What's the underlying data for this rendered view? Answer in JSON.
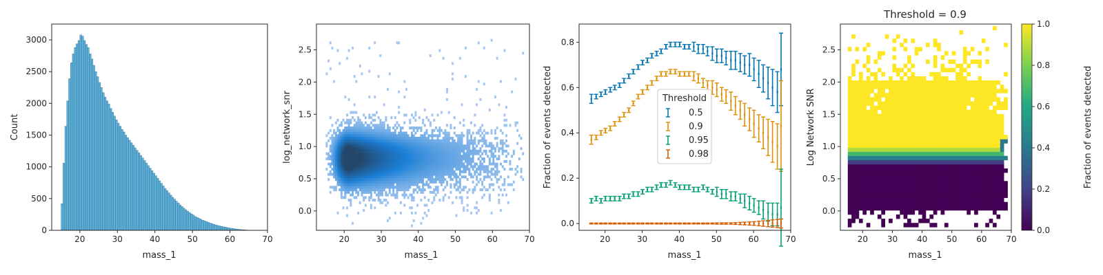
{
  "chart_data": [
    {
      "type": "bar",
      "subtype": "histogram",
      "xlabel": "mass_1",
      "ylabel": "Count",
      "xlim": [
        12.5,
        70
      ],
      "ylim": [
        0,
        3250
      ],
      "xticks": [
        "20",
        "30",
        "40",
        "50",
        "60",
        "70"
      ],
      "yticks": [
        "0",
        "500",
        "1000",
        "1500",
        "2000",
        "2500",
        "3000"
      ],
      "color": "#3a9ccd",
      "bin_start": 15,
      "bin_width": 0.5,
      "values": [
        420,
        1060,
        1640,
        2040,
        2390,
        2640,
        2780,
        2880,
        2940,
        2990,
        3080,
        3060,
        2990,
        2930,
        2880,
        2780,
        2700,
        2600,
        2500,
        2420,
        2330,
        2250,
        2170,
        2100,
        2040,
        1990,
        1920,
        1860,
        1800,
        1740,
        1690,
        1640,
        1590,
        1550,
        1500,
        1460,
        1420,
        1380,
        1340,
        1300,
        1260,
        1220,
        1180,
        1140,
        1100,
        1060,
        1020,
        980,
        940,
        900,
        860,
        820,
        780,
        740,
        700,
        660,
        625,
        590,
        555,
        520,
        490,
        460,
        430,
        400,
        375,
        350,
        325,
        300,
        280,
        260,
        240,
        220,
        205,
        190,
        175,
        160,
        148,
        136,
        125,
        114,
        104,
        94,
        85,
        77,
        70,
        63,
        56,
        50,
        44,
        38,
        33,
        28,
        24,
        20,
        16,
        13,
        10,
        8,
        6,
        4,
        3,
        2,
        1,
        1,
        0,
        0
      ]
    },
    {
      "type": "heatmap",
      "subtype": "2d-histogram",
      "xlabel": "mass_1",
      "ylabel": "log_network_snr",
      "xlim": [
        12.5,
        70
      ],
      "ylim": [
        -0.3,
        2.9
      ],
      "xticks": [
        "20",
        "30",
        "40",
        "50",
        "60",
        "70"
      ],
      "yticks": [
        "0.0",
        "0.5",
        "1.0",
        "1.5",
        "2.0",
        "2.5"
      ],
      "peak": {
        "mass_1": 21,
        "log_network_snr": 0.8
      },
      "colormap": [
        "#a8c8f0",
        "#1a7fd6",
        "#23476b"
      ]
    },
    {
      "type": "line",
      "subtype": "errorbar",
      "xlabel": "mass_1",
      "ylabel": "Fraction of events detected",
      "xlim": [
        13,
        70
      ],
      "ylim": [
        -0.03,
        0.88
      ],
      "xticks": [
        "20",
        "30",
        "40",
        "50",
        "60",
        "70"
      ],
      "yticks": [
        "0.0",
        "0.2",
        "0.4",
        "0.6",
        "0.8"
      ],
      "legend_title": "Threshold",
      "legend_position": "center",
      "x": [
        16.3,
        17.6,
        18.9,
        20.1,
        21.4,
        22.6,
        23.9,
        25.1,
        26.4,
        27.6,
        28.9,
        30.1,
        31.4,
        32.6,
        33.9,
        35.1,
        36.4,
        37.6,
        38.9,
        40.1,
        41.4,
        42.6,
        43.9,
        45.1,
        46.4,
        47.6,
        48.9,
        50.1,
        51.4,
        52.6,
        53.9,
        55.1,
        56.4,
        57.6,
        58.9,
        60.1,
        61.4,
        62.6,
        63.9,
        65.1,
        66.4,
        67.4
      ],
      "series": [
        {
          "name": "0.5",
          "color": "#0173b2",
          "values": [
            0.55,
            0.56,
            0.57,
            0.58,
            0.59,
            0.6,
            0.61,
            0.63,
            0.65,
            0.67,
            0.69,
            0.71,
            0.72,
            0.74,
            0.75,
            0.76,
            0.78,
            0.79,
            0.79,
            0.79,
            0.78,
            0.78,
            0.78,
            0.77,
            0.77,
            0.76,
            0.75,
            0.74,
            0.74,
            0.73,
            0.72,
            0.72,
            0.71,
            0.7,
            0.7,
            0.68,
            0.66,
            0.64,
            0.62,
            0.6,
            0.58,
            0.68
          ],
          "errors": [
            0.02,
            0.01,
            0.01,
            0.01,
            0.01,
            0.01,
            0.01,
            0.01,
            0.01,
            0.01,
            0.01,
            0.01,
            0.01,
            0.01,
            0.01,
            0.01,
            0.01,
            0.01,
            0.01,
            0.01,
            0.01,
            0.01,
            0.02,
            0.02,
            0.02,
            0.02,
            0.03,
            0.03,
            0.03,
            0.03,
            0.04,
            0.04,
            0.04,
            0.04,
            0.05,
            0.05,
            0.06,
            0.06,
            0.07,
            0.08,
            0.09,
            0.16
          ]
        },
        {
          "name": "0.9",
          "color": "#de8f05",
          "values": [
            0.37,
            0.38,
            0.4,
            0.41,
            0.42,
            0.44,
            0.46,
            0.48,
            0.5,
            0.53,
            0.56,
            0.58,
            0.6,
            0.62,
            0.64,
            0.66,
            0.66,
            0.67,
            0.67,
            0.66,
            0.66,
            0.66,
            0.65,
            0.64,
            0.62,
            0.61,
            0.6,
            0.59,
            0.57,
            0.56,
            0.54,
            0.52,
            0.5,
            0.48,
            0.46,
            0.44,
            0.42,
            0.4,
            0.38,
            0.36,
            0.34,
            0.43
          ],
          "errors": [
            0.02,
            0.01,
            0.01,
            0.01,
            0.01,
            0.01,
            0.01,
            0.01,
            0.01,
            0.01,
            0.01,
            0.01,
            0.01,
            0.01,
            0.01,
            0.01,
            0.01,
            0.01,
            0.01,
            0.01,
            0.01,
            0.01,
            0.02,
            0.02,
            0.02,
            0.02,
            0.03,
            0.03,
            0.03,
            0.03,
            0.04,
            0.04,
            0.04,
            0.05,
            0.05,
            0.06,
            0.06,
            0.07,
            0.08,
            0.09,
            0.1,
            0.2
          ]
        },
        {
          "name": "0.95",
          "color": "#029e73",
          "values": [
            0.1,
            0.11,
            0.1,
            0.11,
            0.11,
            0.11,
            0.11,
            0.12,
            0.12,
            0.13,
            0.13,
            0.14,
            0.15,
            0.15,
            0.16,
            0.17,
            0.17,
            0.18,
            0.17,
            0.16,
            0.16,
            0.16,
            0.15,
            0.15,
            0.16,
            0.15,
            0.14,
            0.14,
            0.13,
            0.13,
            0.12,
            0.12,
            0.11,
            0.1,
            0.09,
            0.08,
            0.07,
            0.06,
            0.05,
            0.04,
            0.04,
            0.07
          ],
          "errors": [
            0.01,
            0.01,
            0.01,
            0.01,
            0.01,
            0.01,
            0.01,
            0.01,
            0.01,
            0.01,
            0.01,
            0.01,
            0.01,
            0.01,
            0.01,
            0.01,
            0.01,
            0.01,
            0.01,
            0.01,
            0.01,
            0.01,
            0.01,
            0.01,
            0.01,
            0.01,
            0.01,
            0.02,
            0.02,
            0.02,
            0.02,
            0.02,
            0.02,
            0.03,
            0.03,
            0.03,
            0.03,
            0.04,
            0.04,
            0.05,
            0.05,
            0.17
          ]
        },
        {
          "name": "0.98",
          "color": "#d55e00",
          "values": [
            0,
            0,
            0,
            0,
            0,
            0,
            0,
            0,
            0,
            0,
            0,
            0,
            0,
            0,
            0,
            0,
            0,
            0,
            0,
            0,
            0,
            0,
            0,
            0,
            0,
            0,
            0,
            0,
            0,
            0,
            0,
            0,
            0,
            0,
            0,
            0,
            0,
            0,
            0,
            0,
            0,
            0
          ],
          "errors": [
            0.002,
            0.002,
            0.002,
            0.002,
            0.002,
            0.002,
            0.002,
            0.002,
            0.002,
            0.002,
            0.002,
            0.002,
            0.002,
            0.002,
            0.002,
            0.002,
            0.002,
            0.002,
            0.002,
            0.002,
            0.002,
            0.002,
            0.002,
            0.002,
            0.002,
            0.002,
            0.002,
            0.003,
            0.003,
            0.003,
            0.003,
            0.004,
            0.005,
            0.006,
            0.007,
            0.008,
            0.01,
            0.012,
            0.014,
            0.016,
            0.018,
            0.02
          ]
        }
      ]
    },
    {
      "type": "heatmap",
      "title": "Threshold = 0.9",
      "xlabel": "mass_1",
      "ylabel": "Log Network SNR",
      "xlim": [
        12.5,
        70
      ],
      "ylim": [
        -0.3,
        2.9
      ],
      "xticks": [
        "20",
        "30",
        "40",
        "50",
        "60",
        "70"
      ],
      "yticks": [
        "0.0",
        "0.5",
        "1.0",
        "1.5",
        "2.0",
        "2.5"
      ],
      "colormap": "viridis",
      "colorbar_label": "Fraction of events detected",
      "colorbar_range": [
        0,
        1
      ],
      "colorbar_ticks": [
        "0.0",
        "0.2",
        "0.4",
        "0.6",
        "0.8",
        "1.0"
      ],
      "transition_log_snr": 0.9
    }
  ]
}
